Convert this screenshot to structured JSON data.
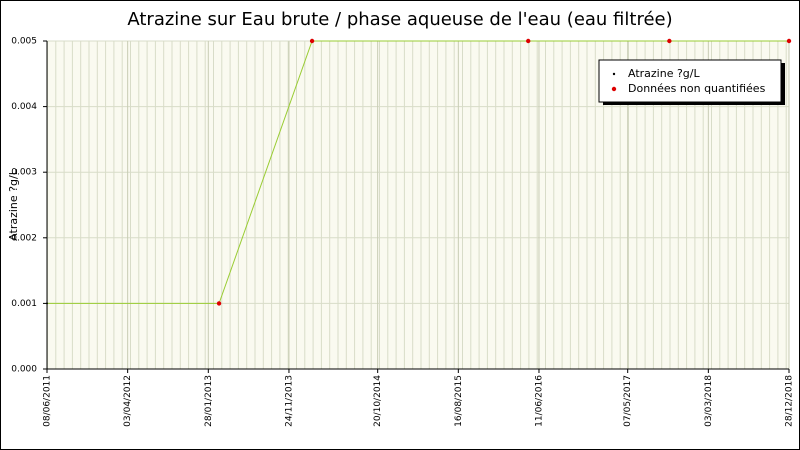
{
  "chart_data": {
    "type": "line",
    "title": "Atrazine sur Eau brute / phase aqueuse de l'eau (eau filtrée)",
    "y_label": "Atrazine ?g/L",
    "x": [
      "2011-06-08",
      "2013-03-09",
      "2014-02-18",
      "2016-05-02",
      "2017-10-09",
      "2018-12-28"
    ],
    "series": [
      {
        "name": "Atrazine ?g/L",
        "color": "#000000",
        "line_color": "#99cc33",
        "values": [
          0.001,
          0.001,
          0.005,
          0.005,
          0.005,
          0.005
        ]
      },
      {
        "name": "Données non quantifiées",
        "color": "#dd0000",
        "values": [
          null,
          0.001,
          0.005,
          0.005,
          0.005,
          0.005
        ]
      }
    ],
    "xlim": [
      "2011-06-08",
      "2018-12-28"
    ],
    "xticks": [
      {
        "value": "2011-06-08",
        "label": "08/06/2011"
      },
      {
        "value": "2012-04-03",
        "label": "03/04/2012"
      },
      {
        "value": "2013-01-28",
        "label": "28/01/2013"
      },
      {
        "value": "2013-11-24",
        "label": "24/11/2013"
      },
      {
        "value": "2014-10-20",
        "label": "20/10/2014"
      },
      {
        "value": "2015-08-16",
        "label": "16/08/2015"
      },
      {
        "value": "2016-06-11",
        "label": "11/06/2016"
      },
      {
        "value": "2017-05-07",
        "label": "07/05/2017"
      },
      {
        "value": "2018-03-03",
        "label": "03/03/2018"
      },
      {
        "value": "2018-12-28",
        "label": "28/12/2018"
      }
    ],
    "ylim": [
      0,
      0.005
    ],
    "yticks": [
      {
        "value": 0,
        "label": "0.000"
      },
      0.001,
      0.002,
      0.003,
      0.004,
      0.005
    ],
    "grid": true,
    "legend": "upper right"
  }
}
